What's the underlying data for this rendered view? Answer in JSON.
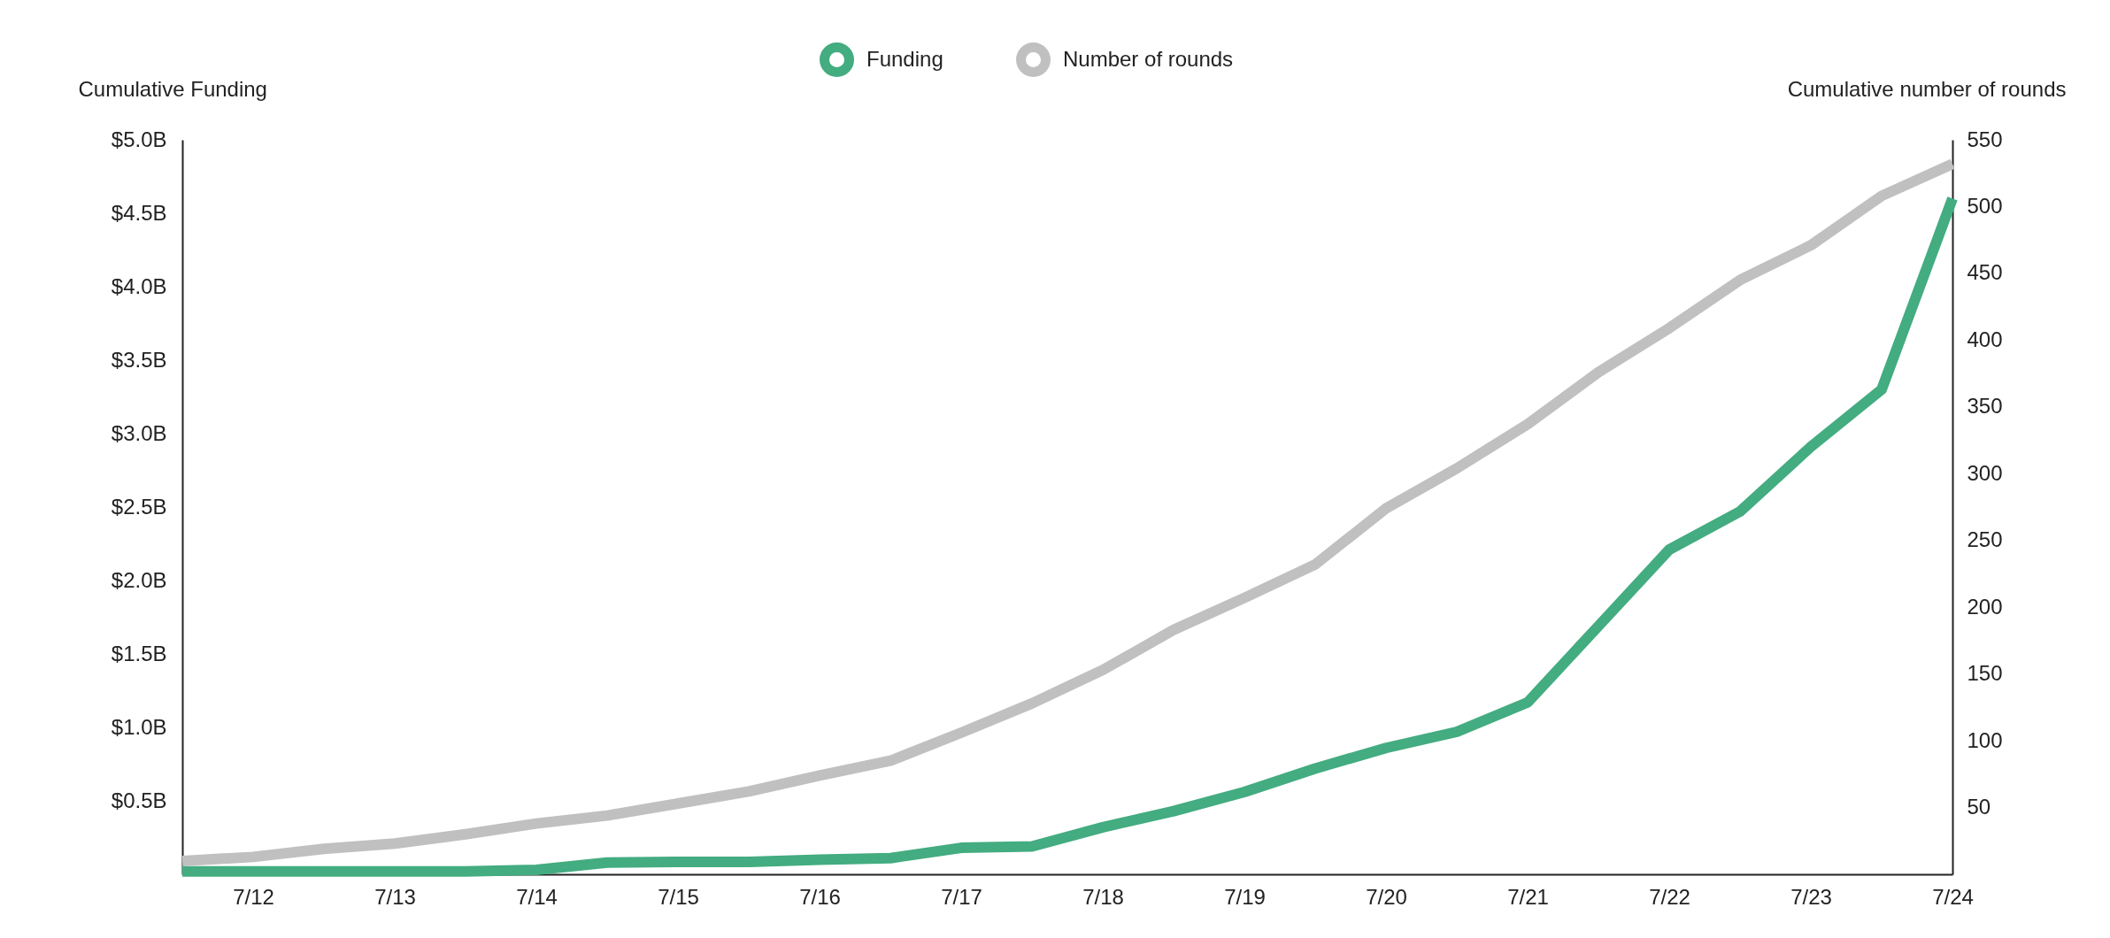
{
  "chart_data": {
    "type": "line",
    "xlabel": null,
    "ylabel": "Cumulative Funding",
    "y2label": "Cumulative number of rounds",
    "categories": [
      null,
      "7/12",
      null,
      "7/13",
      null,
      "7/14",
      null,
      "7/15",
      null,
      "7/16",
      null,
      "7/17",
      null,
      "7/18",
      null,
      "7/19",
      null,
      "7/20",
      null,
      "7/21",
      null,
      "7/22",
      null,
      "7/23",
      null,
      "7/24"
    ],
    "series": [
      {
        "name": "Funding",
        "color": "#43ac80",
        "values": [
          0.02,
          0.02,
          0.02,
          0.02,
          0.02,
          0.03,
          0.08,
          0.085,
          0.085,
          0.1,
          0.11,
          0.18,
          0.19,
          0.32,
          0.43,
          0.56,
          0.72,
          0.86,
          0.97,
          1.17,
          1.69,
          2.21,
          2.47,
          2.91,
          3.3,
          4.6
        ]
      },
      {
        "name": "Number of rounds",
        "color": "#c0c0c0",
        "axis": "y2",
        "values": [
          10,
          13,
          19,
          23,
          30,
          38,
          44,
          53,
          62,
          74,
          85,
          106,
          128,
          153,
          183,
          207,
          232,
          274,
          304,
          337,
          376,
          409,
          445,
          471,
          508,
          532
        ]
      }
    ],
    "ylim": [
      0,
      5
    ],
    "yticks": [
      {
        "value": 0.5,
        "label": "$0.5B"
      },
      {
        "value": 1,
        "label": "$1.0B"
      },
      {
        "value": 1.5,
        "label": "$1.5B"
      },
      {
        "value": 2,
        "label": "$2.0B"
      },
      {
        "value": 2.5,
        "label": "$2.5B"
      },
      {
        "value": 3,
        "label": "$3.0B"
      },
      {
        "value": 3.5,
        "label": "$3.5B"
      },
      {
        "value": 4,
        "label": "$4.0B"
      },
      {
        "value": 4.5,
        "label": "$4.5B"
      },
      {
        "value": 5,
        "label": "$5.0B"
      }
    ],
    "y2lim": [
      0,
      550
    ],
    "y2ticks": [
      50,
      100,
      150,
      200,
      250,
      300,
      350,
      400,
      450,
      500,
      550
    ],
    "legend": "top"
  }
}
